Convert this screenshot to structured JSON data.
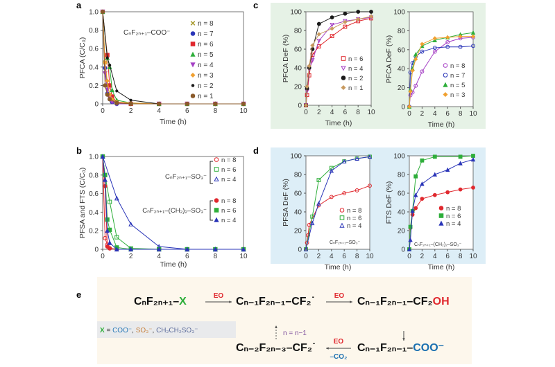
{
  "colors": {
    "panel_c_bg": "#e6f2e6",
    "panel_d_bg": "#ddeef7",
    "panel_e_bg": "#fdf7ec",
    "x_box_bg": "#e9eaec",
    "red": "#e0282e",
    "green": "#2eae3a",
    "blue": "#2a35b8",
    "purple": "#a43fc4",
    "black": "#1a1a1a",
    "orange": "#f0a030",
    "tan": "#b08a50",
    "brown": "#8a5a2a",
    "olive": "#a89a30"
  },
  "chart_data": [
    {
      "panel": "a",
      "type": "line",
      "xlabel": "Time (h)",
      "ylabel": "PFCA (C/C₀)",
      "xlim": [
        0,
        10
      ],
      "ylim": [
        0,
        1
      ],
      "xticks": [
        0,
        2,
        4,
        6,
        8,
        10
      ],
      "yticks": [
        0,
        0.2,
        0.4,
        0.6,
        0.8,
        1.0
      ],
      "ytick_labels": [
        "0",
        "0.2",
        "0.4",
        "0.6",
        "0.8",
        "1.0"
      ],
      "annotation": "CₙF₂ₙ₊₁–COO⁻",
      "legend_placement": "right",
      "series": [
        {
          "name": "n = 8",
          "color": "#a89a30",
          "marker": "x",
          "x": [
            0,
            0.17,
            0.33,
            0.5,
            0.67,
            1,
            2,
            4,
            6,
            8,
            10
          ],
          "y": [
            1,
            0.45,
            0.2,
            0.1,
            0.05,
            0.01,
            0,
            0,
            0,
            0,
            0
          ]
        },
        {
          "name": "n = 7",
          "color": "#2a35b8",
          "marker": "circle-filled",
          "x": [
            0,
            0.17,
            0.33,
            0.5,
            0.67,
            1,
            2,
            4,
            6,
            8,
            10
          ],
          "y": [
            1,
            0.39,
            0.11,
            0.05,
            0.02,
            0,
            0,
            0,
            0,
            0,
            0
          ]
        },
        {
          "name": "n = 6",
          "color": "#e0282e",
          "marker": "square-filled",
          "x": [
            0,
            0.33,
            0.5,
            0.67,
            1,
            2,
            4,
            6,
            8,
            10
          ],
          "y": [
            1,
            0.53,
            0.2,
            0.08,
            0.02,
            0,
            0,
            0,
            0,
            0
          ]
        },
        {
          "name": "n = 5",
          "color": "#2eae3a",
          "marker": "triangle",
          "x": [
            0,
            0.33,
            0.5,
            0.67,
            1,
            2,
            4,
            6,
            8,
            10
          ],
          "y": [
            1,
            0.5,
            0.4,
            0.15,
            0.04,
            0.01,
            0,
            0,
            0,
            0
          ]
        },
        {
          "name": "n = 4",
          "color": "#a43fc4",
          "marker": "triangle-down",
          "x": [
            0,
            0.17,
            0.33,
            0.5,
            0.67,
            1,
            2,
            4,
            6,
            8,
            10
          ],
          "y": [
            1,
            0.33,
            0.15,
            0.06,
            0.02,
            0,
            0,
            0,
            0,
            0,
            0
          ]
        },
        {
          "name": "n = 3",
          "color": "#f0a030",
          "marker": "diamond",
          "x": [
            0,
            0.17,
            0.33,
            0.5,
            0.67,
            1,
            2,
            4,
            6,
            8,
            10
          ],
          "y": [
            1,
            0.45,
            0.25,
            0.1,
            0.05,
            0.02,
            0.01,
            0,
            0,
            0,
            0
          ]
        },
        {
          "name": "n = 2",
          "color": "#1a1a1a",
          "marker": "star",
          "x": [
            0,
            0.33,
            0.5,
            1,
            2,
            4,
            6,
            8,
            10
          ],
          "y": [
            1,
            0.5,
            0.42,
            0.14,
            0.04,
            0,
            0,
            0,
            0
          ]
        },
        {
          "name": "n = 1",
          "color": "#8a5a2a",
          "marker": "circle-filled",
          "x": [
            0,
            0.17,
            0.33,
            0.5,
            1,
            2,
            4,
            6,
            8,
            10
          ],
          "y": [
            1,
            0.2,
            0.1,
            0.05,
            0.01,
            0,
            0,
            0,
            0,
            0
          ]
        }
      ]
    },
    {
      "panel": "b",
      "type": "line",
      "xlabel": "",
      "ylabel": "PFSA and FTS (C/C₀)",
      "xlim": [
        0,
        10
      ],
      "ylim": [
        0,
        1
      ],
      "xticks": [
        0,
        2,
        4,
        6,
        8,
        10
      ],
      "yticks": [
        0,
        0.2,
        0.4,
        0.6,
        0.8,
        1.0
      ],
      "ytick_labels": [
        "0",
        "0.2",
        "0.4",
        "0.6",
        "0.8",
        "1.0"
      ],
      "group_labels": [
        "CₙF₂ₙ₊₁–SO₃⁻",
        "CₙF₂ₙ₊₁–(CH₂)₂–SO₃⁻"
      ],
      "legend_placement": "right",
      "series": [
        {
          "name": "n = 8",
          "group": 0,
          "color": "#e0282e",
          "marker": "circle-open",
          "x": [
            0,
            0.17,
            0.33,
            0.5,
            1,
            2,
            4,
            6,
            8,
            10
          ],
          "y": [
            1,
            0.12,
            0.05,
            0.01,
            0,
            0,
            0,
            0,
            0,
            0
          ]
        },
        {
          "name": "n = 6",
          "group": 0,
          "color": "#2eae3a",
          "marker": "square-open",
          "x": [
            0,
            0.17,
            0.5,
            1,
            2,
            4,
            6,
            8,
            10
          ],
          "y": [
            1,
            0.8,
            0.51,
            0.13,
            0.01,
            0,
            0,
            0,
            0
          ]
        },
        {
          "name": "n = 4",
          "group": 0,
          "color": "#2a35b8",
          "marker": "triangle-open",
          "x": [
            0,
            1,
            2,
            4,
            6,
            8,
            10
          ],
          "y": [
            1,
            0.55,
            0.27,
            0.03,
            0,
            0,
            0
          ]
        },
        {
          "name": "n = 8",
          "group": 1,
          "color": "#e0282e",
          "marker": "circle-filled",
          "x": [
            0,
            0.17,
            0.33,
            0.5,
            1,
            2,
            4,
            6,
            8,
            10
          ],
          "y": [
            1,
            0.68,
            0.03,
            0.01,
            0,
            0,
            0,
            0,
            0,
            0
          ]
        },
        {
          "name": "n = 6",
          "group": 1,
          "color": "#2eae3a",
          "marker": "square-filled",
          "x": [
            0,
            0.17,
            0.33,
            0.5,
            1,
            2,
            4,
            6,
            8,
            10
          ],
          "y": [
            1,
            0.8,
            0.32,
            0.21,
            0.02,
            0,
            0,
            0,
            0,
            0
          ]
        },
        {
          "name": "n = 4",
          "group": 1,
          "color": "#2a35b8",
          "marker": "triangle",
          "x": [
            0,
            0.17,
            0.33,
            0.5,
            1,
            2,
            4,
            6,
            8,
            10
          ],
          "y": [
            1,
            0.75,
            0.2,
            0.07,
            0,
            0,
            0,
            0,
            0,
            0
          ]
        }
      ]
    },
    {
      "panel": "c",
      "type": "line",
      "xlabel": "Time (h)",
      "ylabel": "PFCA DeF (%)",
      "xlim": [
        0,
        10
      ],
      "ylim": [
        0,
        100
      ],
      "xticks": [
        0,
        2,
        4,
        6,
        8,
        10
      ],
      "yticks": [
        0,
        20,
        40,
        60,
        80,
        100
      ],
      "legend_placement": "bottom-right",
      "series": [
        {
          "name": "n = 6",
          "color": "#e0282e",
          "marker": "square-open",
          "x": [
            0,
            0.17,
            0.5,
            1,
            2,
            4,
            6,
            8,
            10
          ],
          "y": [
            0,
            11,
            32,
            54,
            63,
            74,
            84,
            90,
            93
          ]
        },
        {
          "name": "n = 4",
          "color": "#a43fc4",
          "marker": "triangle-down-open",
          "x": [
            0,
            0.17,
            0.5,
            1,
            2,
            4,
            6,
            8,
            10
          ],
          "y": [
            0,
            15,
            38,
            48,
            69,
            86,
            90,
            92,
            94
          ]
        },
        {
          "name": "n = 2",
          "color": "#1a1a1a",
          "marker": "circle-filled",
          "x": [
            0,
            0.17,
            0.5,
            1,
            2,
            4,
            6,
            8,
            10
          ],
          "y": [
            0,
            18,
            40,
            60,
            87,
            94,
            98,
            100,
            100
          ]
        },
        {
          "name": "n = 1",
          "color": "#c89a60",
          "marker": "diamond",
          "x": [
            0,
            0.17,
            0.5,
            1,
            2,
            4,
            6,
            8,
            10
          ],
          "y": [
            0,
            20,
            42,
            64,
            76,
            82,
            89,
            92,
            95
          ]
        }
      ]
    },
    {
      "panel": "c-right",
      "type": "line",
      "xlabel": "Time (h)",
      "ylabel": "PFCA DeF (%)",
      "xlim": [
        0,
        10
      ],
      "ylim": [
        0,
        100
      ],
      "xticks": [
        0,
        2,
        4,
        6,
        8,
        10
      ],
      "yticks": [
        0,
        20,
        40,
        60,
        80,
        100
      ],
      "legend_placement": "bottom-right",
      "series": [
        {
          "name": "n = 8",
          "color": "#a43fc4",
          "marker": "circle-open",
          "x": [
            0,
            0.17,
            0.5,
            1,
            2,
            4,
            6,
            8,
            10
          ],
          "y": [
            0,
            12,
            15,
            22,
            37,
            58,
            68,
            72,
            73
          ]
        },
        {
          "name": "n = 7",
          "color": "#2a35b8",
          "marker": "circle-open",
          "x": [
            0,
            0.17,
            0.5,
            1,
            2,
            4,
            6,
            8,
            10
          ],
          "y": [
            0,
            36,
            46,
            53,
            58,
            62,
            63,
            63,
            64
          ]
        },
        {
          "name": "n = 5",
          "color": "#2eae3a",
          "marker": "triangle",
          "x": [
            0,
            0.17,
            0.5,
            1,
            2,
            4,
            6,
            8,
            10
          ],
          "y": [
            0,
            18,
            40,
            55,
            64,
            70,
            73,
            76,
            78
          ]
        },
        {
          "name": "n = 3",
          "color": "#f0a030",
          "marker": "diamond",
          "x": [
            0,
            0.17,
            0.5,
            1,
            2,
            4,
            6,
            8,
            10
          ],
          "y": [
            0,
            16,
            38,
            50,
            66,
            72,
            73,
            74,
            74
          ]
        }
      ]
    },
    {
      "panel": "d",
      "type": "line",
      "xlabel": "Time (h)",
      "ylabel": "PFSA DeF (%)",
      "xlim": [
        0,
        10
      ],
      "ylim": [
        0,
        100
      ],
      "xticks": [
        0,
        2,
        4,
        6,
        8,
        10
      ],
      "yticks": [
        0,
        20,
        40,
        60,
        80,
        100
      ],
      "annotation": "CₙF₂ₙ₊₁–SO₃⁻",
      "legend_placement": "bottom-right",
      "series": [
        {
          "name": "n = 8",
          "color": "#e0282e",
          "marker": "circle-open",
          "x": [
            0,
            0.17,
            0.33,
            0.5,
            2,
            4,
            6,
            8,
            10
          ],
          "y": [
            0,
            7,
            15,
            26,
            47,
            56,
            60,
            63,
            68
          ]
        },
        {
          "name": "n = 6",
          "color": "#2eae3a",
          "marker": "square-open",
          "x": [
            0,
            1,
            2,
            4,
            6,
            8,
            10
          ],
          "y": [
            0,
            35,
            74,
            87,
            94,
            97,
            99
          ]
        },
        {
          "name": "n = 4",
          "color": "#2a35b8",
          "marker": "triangle-open",
          "x": [
            0,
            1,
            2,
            4,
            6,
            8,
            10
          ],
          "y": [
            0,
            28,
            49,
            84,
            94,
            97,
            99
          ]
        }
      ]
    },
    {
      "panel": "d-right",
      "type": "line",
      "xlabel": "Time (h)",
      "ylabel": "FTS DeF (%)",
      "xlim": [
        0,
        10
      ],
      "ylim": [
        0,
        100
      ],
      "xticks": [
        0,
        2,
        4,
        6,
        8,
        10
      ],
      "yticks": [
        0,
        20,
        40,
        60,
        80,
        100
      ],
      "annotation": "CₙF₂ₙ₊₁–(CH₂)₂–SO₃⁻",
      "legend_placement": "bottom-right",
      "series": [
        {
          "name": "n = 8",
          "color": "#e0282e",
          "marker": "circle-filled",
          "x": [
            0,
            0.17,
            0.5,
            1,
            2,
            4,
            6,
            8,
            10
          ],
          "y": [
            0,
            23,
            37,
            44,
            54,
            58,
            61,
            64,
            66
          ]
        },
        {
          "name": "n = 6",
          "color": "#2eae3a",
          "marker": "square-filled",
          "x": [
            0,
            0.17,
            0.5,
            1,
            2,
            4,
            8,
            10
          ],
          "y": [
            0,
            24,
            41,
            78,
            95,
            99,
            99,
            100
          ]
        },
        {
          "name": "n = 4",
          "color": "#2a35b8",
          "marker": "triangle",
          "x": [
            0,
            0.17,
            0.5,
            1,
            2,
            4,
            6,
            8,
            10
          ],
          "y": [
            0,
            10,
            41,
            58,
            70,
            80,
            85,
            92,
            96
          ]
        }
      ]
    }
  ],
  "scheme": {
    "panel": "e",
    "start": {
      "main": "CₙF₂ₙ₊₁–",
      "tail": "X"
    },
    "radical1": {
      "main": "Cₙ₋₁F₂ₙ₋₁–CF₂˙"
    },
    "alcohol": {
      "main": "Cₙ₋₁F₂ₙ₋₁–CF₂",
      "tail": "OH"
    },
    "carboxylate": {
      "main": "Cₙ₋₁F₂ₙ₋₁–",
      "tail": "COO⁻"
    },
    "radical2": {
      "main": "Cₙ₋₂F₂ₙ₋₃–CF₂˙"
    },
    "arrow_label_eo": "EO",
    "arrow_label_co2": "–CO₂",
    "loop_label": "n = n−1",
    "x_def": {
      "prefix": "X",
      "eq": " = ",
      "coo": "COO⁻",
      "sep": ", ",
      "so3": "SO₃⁻",
      "ch": "CH₂CH₂SO₃⁻"
    }
  }
}
